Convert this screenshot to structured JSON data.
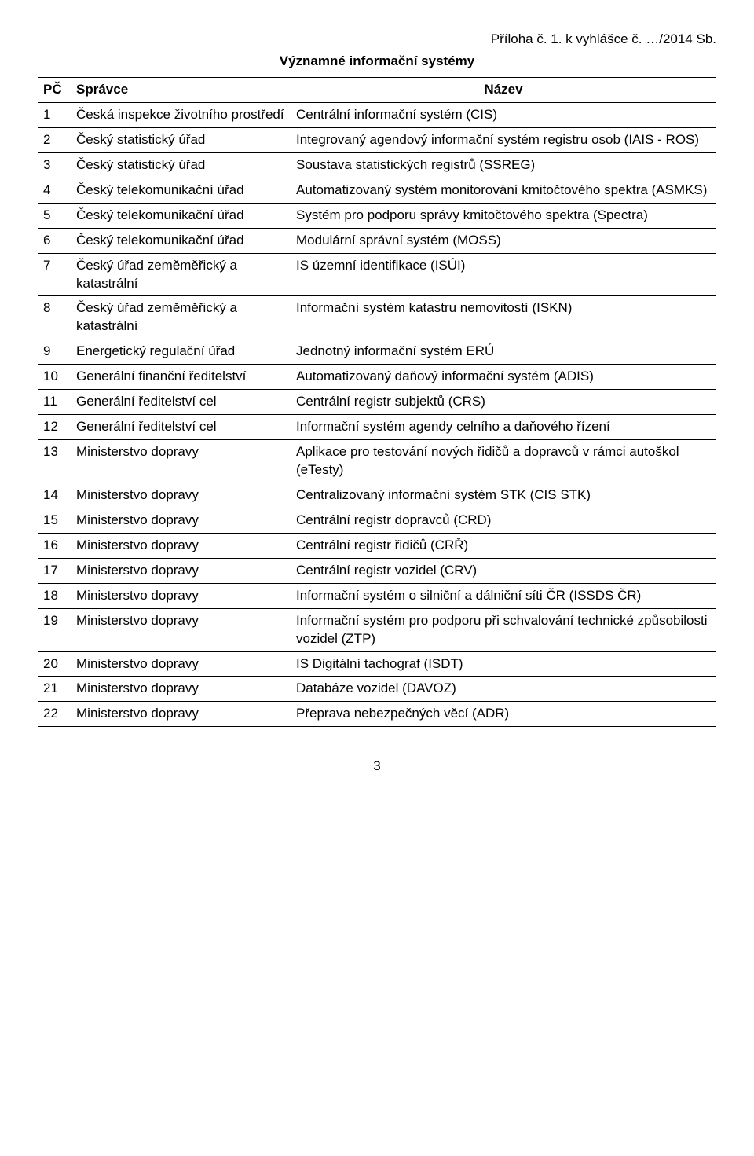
{
  "topright": "Příloha č. 1. k vyhlášce č. …/2014 Sb.",
  "heading": "Významné informační systémy",
  "table": {
    "headers": {
      "c1": "PČ",
      "c2": "Správce",
      "c3": "Název"
    },
    "rows": [
      {
        "n": "1",
        "s": "Česká inspekce životního prostředí",
        "t": "Centrální informační systém (CIS)"
      },
      {
        "n": "2",
        "s": "Český statistický úřad",
        "t": "Integrovaný agendový informační systém registru osob (IAIS - ROS)"
      },
      {
        "n": "3",
        "s": "Český statistický úřad",
        "t": "Soustava statistických registrů (SSREG)"
      },
      {
        "n": "4",
        "s": "Český telekomunikační úřad",
        "t": "Automatizovaný systém monitorování kmitočtového spektra (ASMKS)"
      },
      {
        "n": "5",
        "s": "Český telekomunikační úřad",
        "t": "Systém pro podporu správy kmitočtového spektra (Spectra)"
      },
      {
        "n": "6",
        "s": "Český telekomunikační úřad",
        "t": "Modulární správní systém (MOSS)"
      },
      {
        "n": "7",
        "s": "Český úřad zeměměřický a katastrální",
        "t": "IS územní identifikace (ISÚI)"
      },
      {
        "n": "8",
        "s": "Český úřad zeměměřický a katastrální",
        "t": "Informační systém katastru nemovitostí (ISKN)"
      },
      {
        "n": "9",
        "s": "Energetický regulační úřad",
        "t": "Jednotný informační systém ERÚ"
      },
      {
        "n": "10",
        "s": "Generální finanční ředitelství",
        "t": "Automatizovaný daňový informační systém (ADIS)"
      },
      {
        "n": "11",
        "s": "Generální ředitelství cel",
        "t": "Centrální registr subjektů (CRS)"
      },
      {
        "n": "12",
        "s": "Generální ředitelství cel",
        "t": "Informační systém agendy celního a daňového řízení"
      },
      {
        "n": "13",
        "s": "Ministerstvo dopravy",
        "t": "Aplikace pro testování nových řidičů a dopravců v rámci autoškol (eTesty)"
      },
      {
        "n": "14",
        "s": "Ministerstvo dopravy",
        "t": "Centralizovaný informační systém STK (CIS STK)"
      },
      {
        "n": "15",
        "s": "Ministerstvo dopravy",
        "t": "Centrální registr dopravců (CRD)"
      },
      {
        "n": "16",
        "s": "Ministerstvo dopravy",
        "t": "Centrální registr řidičů (CRŘ)"
      },
      {
        "n": "17",
        "s": "Ministerstvo dopravy",
        "t": "Centrální registr vozidel (CRV)"
      },
      {
        "n": "18",
        "s": "Ministerstvo dopravy",
        "t": "Informační systém o silniční a dálniční síti ČR (ISSDS ČR)"
      },
      {
        "n": "19",
        "s": "Ministerstvo dopravy",
        "t": "Informační systém pro podporu při schvalování technické způsobilosti vozidel (ZTP)"
      },
      {
        "n": "20",
        "s": "Ministerstvo dopravy",
        "t": "IS Digitální tachograf (ISDT)"
      },
      {
        "n": "21",
        "s": "Ministerstvo dopravy",
        "t": "Databáze vozidel (DAVOZ)"
      },
      {
        "n": "22",
        "s": "Ministerstvo dopravy",
        "t": "Přeprava nebezpečných věcí (ADR)"
      }
    ]
  },
  "pagenum": "3"
}
